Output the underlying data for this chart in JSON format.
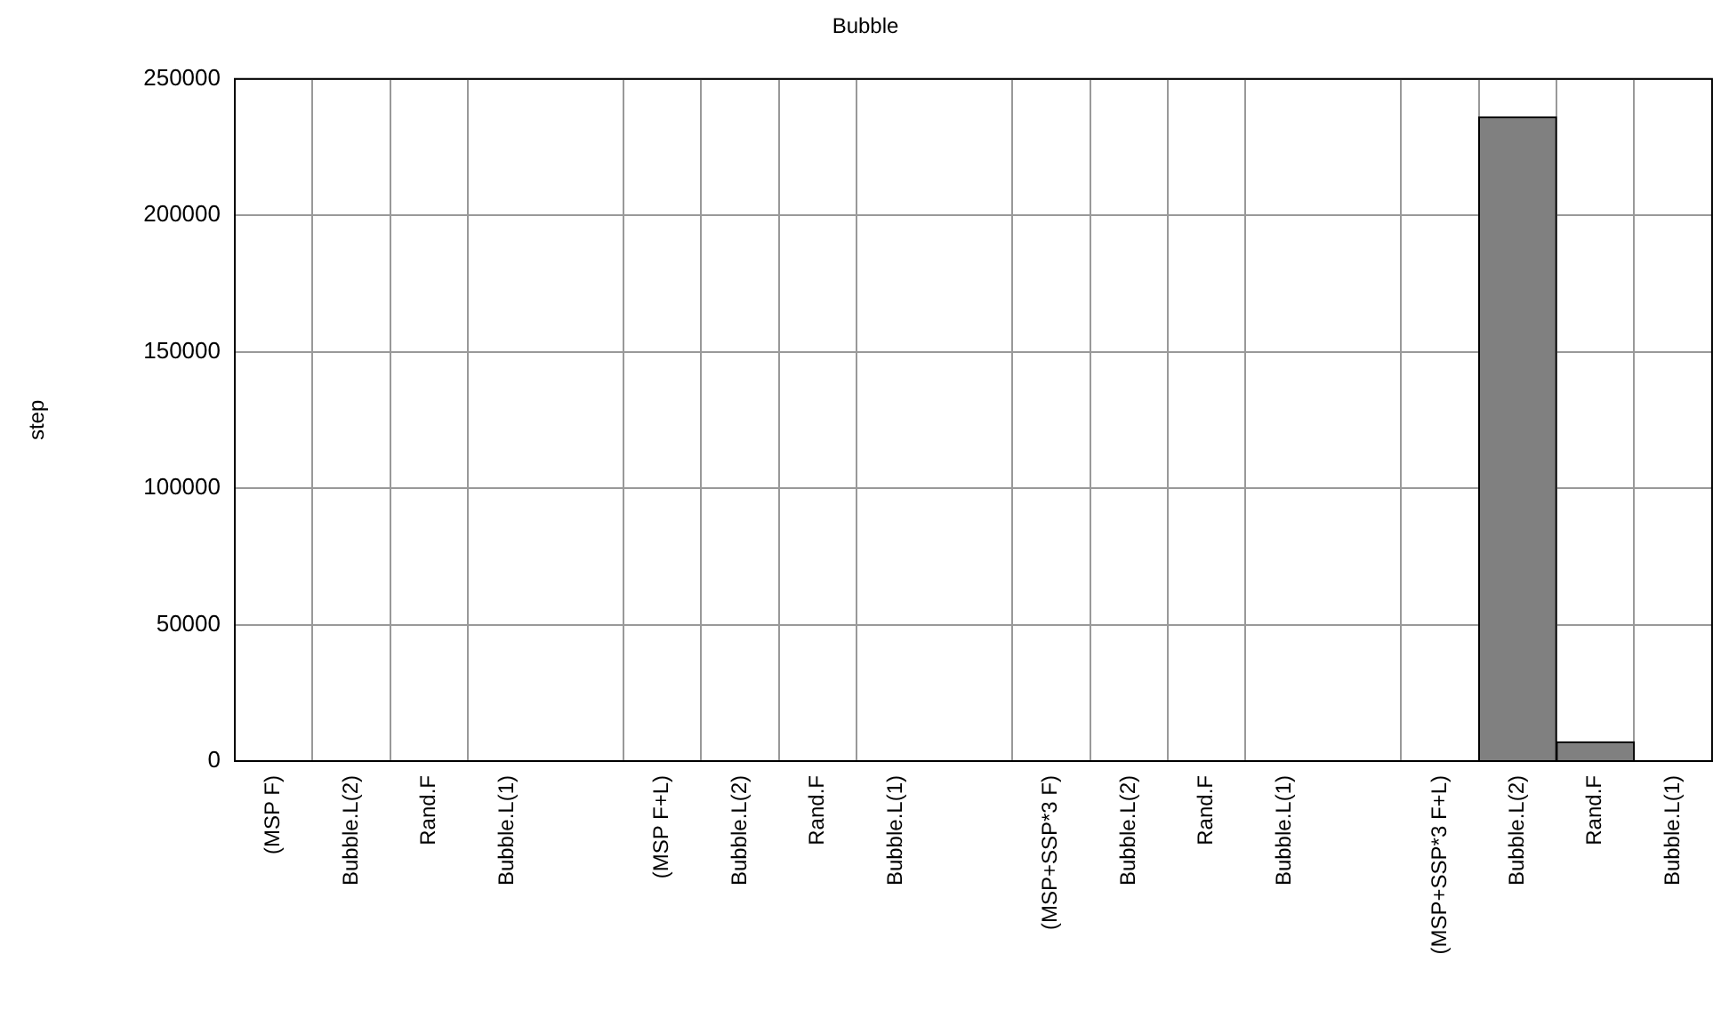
{
  "chart_data": {
    "type": "bar",
    "title": "Bubble",
    "ylabel": "step",
    "categories": [
      "(MSP F)",
      "Bubble.L(2)",
      "Rand.F",
      "Bubble.L(1)",
      null,
      "(MSP F+L)",
      "Bubble.L(2)",
      "Rand.F",
      "Bubble.L(1)",
      null,
      "(MSP+SSP*3 F)",
      "Bubble.L(2)",
      "Rand.F",
      "Bubble.L(1)",
      null,
      "(MSP+SSP*3 F+L)",
      "Bubble.L(2)",
      "Rand.F",
      "Bubble.L(1)"
    ],
    "values": [
      0,
      0,
      0,
      0,
      null,
      0,
      0,
      0,
      0,
      null,
      0,
      0,
      0,
      0,
      null,
      0,
      236000,
      7000,
      0
    ],
    "color": "#808080",
    "ylim": [
      0,
      250000
    ],
    "yticks": [
      0,
      50000,
      100000,
      150000,
      200000,
      250000
    ],
    "grid": true,
    "legend": false
  }
}
